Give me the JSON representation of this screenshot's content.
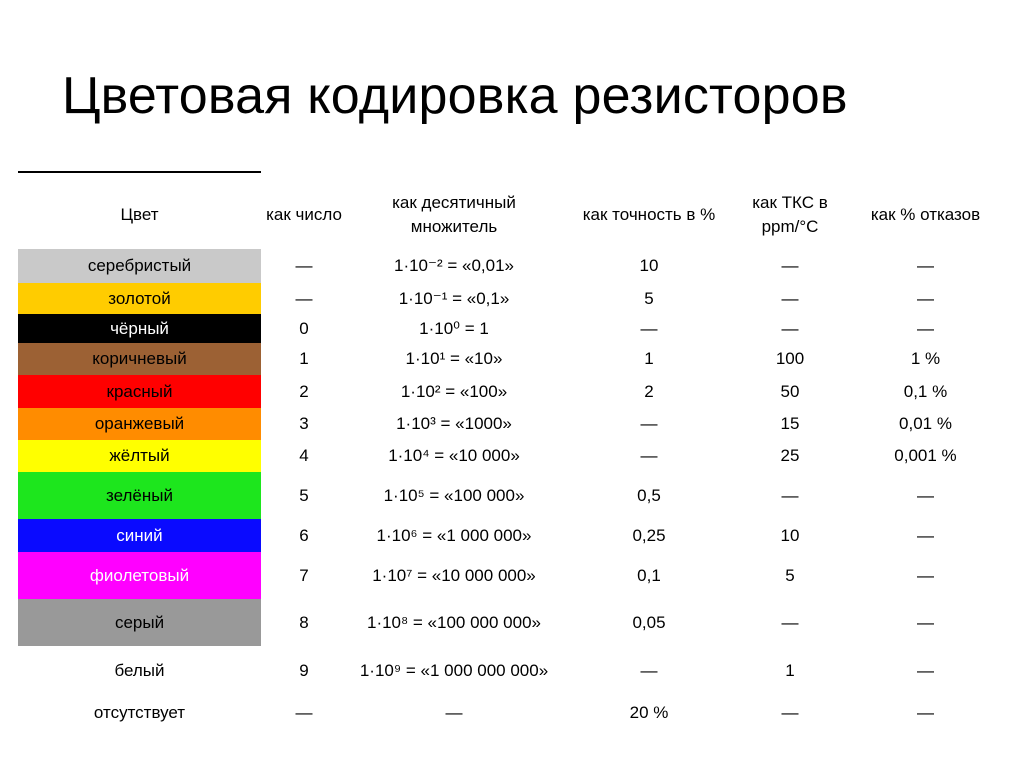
{
  "title": "Цветовая кодировка резисторов",
  "headers": {
    "color": "Цвет",
    "number": "как число",
    "multiplier": "как десятичный множитель",
    "tolerance": "как точность в %",
    "tcr": "как ТКС в ppm/°C",
    "failure": "как % отказов"
  },
  "rows": [
    {
      "name": "серебристый",
      "bg": "#c9c9c9",
      "fg": "#000000",
      "number": "—",
      "multiplier": "1·10⁻² = «0,01»",
      "tolerance": "10",
      "tcr": "—",
      "failure": "—"
    },
    {
      "name": "золотой",
      "bg": "#ffcc00",
      "fg": "#000000",
      "number": "—",
      "multiplier": "1·10⁻¹ = «0,1»",
      "tolerance": "5",
      "tcr": "—",
      "failure": "—"
    },
    {
      "name": "чёрный",
      "bg": "#000000",
      "fg": "#ffffff",
      "number": "0",
      "multiplier": "1·10⁰ = 1",
      "tolerance": "—",
      "tcr": "—",
      "failure": "—"
    },
    {
      "name": "коричневый",
      "bg": "#9c6134",
      "fg": "#000000",
      "number": "1",
      "multiplier": "1·10¹ = «10»",
      "tolerance": "1",
      "tcr": "100",
      "failure": "1 %"
    },
    {
      "name": "красный",
      "bg": "#ff0000",
      "fg": "#000000",
      "number": "2",
      "multiplier": "1·10² = «100»",
      "tolerance": "2",
      "tcr": "50",
      "failure": "0,1 %"
    },
    {
      "name": "оранжевый",
      "bg": "#ff8c00",
      "fg": "#000000",
      "number": "3",
      "multiplier": "1·10³ = «1000»",
      "tolerance": "—",
      "tcr": "15",
      "failure": "0,01 %"
    },
    {
      "name": "жёлтый",
      "bg": "#ffff00",
      "fg": "#000000",
      "number": "4",
      "multiplier": "1·10⁴ = «10 000»",
      "tolerance": "—",
      "tcr": "25",
      "failure": "0,001 %"
    },
    {
      "name": "зелёный",
      "bg": "#1de61d",
      "fg": "#000000",
      "number": "5",
      "multiplier": "1·10⁵ = «100 000»",
      "tolerance": "0,5",
      "tcr": "—",
      "failure": "—"
    },
    {
      "name": "синий",
      "bg": "#0a0aff",
      "fg": "#ffffff",
      "number": "6",
      "multiplier": "1·10⁶ = «1 000 000»",
      "tolerance": "0,25",
      "tcr": "10",
      "failure": "—"
    },
    {
      "name": "фиолетовый",
      "bg": "#ff00ff",
      "fg": "#ffffff",
      "number": "7",
      "multiplier": "1·10⁷ = «10 000 000»",
      "tolerance": "0,1",
      "tcr": "5",
      "failure": "—"
    },
    {
      "name": "серый",
      "bg": "#999999",
      "fg": "#000000",
      "number": "8",
      "multiplier": "1·10⁸ = «100 000 000»",
      "tolerance": "0,05",
      "tcr": "—",
      "failure": "—"
    },
    {
      "name": "белый",
      "bg": "#ffffff",
      "fg": "#000000",
      "number": "9",
      "multiplier": "1·10⁹ = «1 000 000 000»",
      "tolerance": "—",
      "tcr": "1",
      "failure": "—"
    },
    {
      "name": "отсутствует",
      "bg": "#ffffff",
      "fg": "#000000",
      "number": "—",
      "multiplier": "—",
      "tolerance": "20 %",
      "tcr": "—",
      "failure": "—"
    }
  ]
}
